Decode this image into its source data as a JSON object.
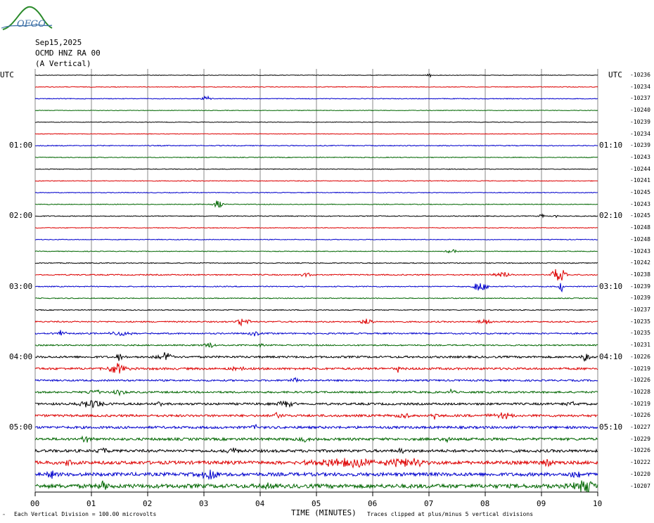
{
  "logo": {
    "text": "OFGO",
    "color": "#2a8a2a",
    "text_color": "#3a6ea5"
  },
  "header": {
    "date": "Sep15,2025",
    "station": "OCMD HNZ RA 00",
    "channel": "(A Vertical)"
  },
  "utc_left": "UTC",
  "utc_right": "UTC",
  "right_top_label": "-10236",
  "x_axis": {
    "label": "TIME (MINUTES)",
    "ticks": [
      "00",
      "01",
      "02",
      "03",
      "04",
      "05",
      "06",
      "07",
      "08",
      "09",
      "10"
    ]
  },
  "footer": {
    "left": "Each Vertical Division =  100.00 microvolts",
    "right": "Traces clipped at plus/minus 5 vertical divisions"
  },
  "chart_data": {
    "type": "line",
    "title": "",
    "xlabel": "TIME (MINUTES)",
    "ylabel": "",
    "xlim": [
      0,
      10
    ],
    "grid": true,
    "colors": [
      "#000000",
      "#dd0000",
      "#0000cc",
      "#006600"
    ],
    "hour_labels_left": [
      {
        "row": 0,
        "text": "UTC"
      },
      {
        "row": 6,
        "text": "01:00"
      },
      {
        "row": 12,
        "text": "02:00"
      },
      {
        "row": 18,
        "text": "03:00"
      },
      {
        "row": 24,
        "text": "04:00"
      },
      {
        "row": 30,
        "text": "05:00"
      }
    ],
    "hour_labels_right": [
      {
        "row": 6,
        "text": "01:10"
      },
      {
        "row": 12,
        "text": "02:10"
      },
      {
        "row": 18,
        "text": "03:10"
      },
      {
        "row": 24,
        "text": "04:10"
      },
      {
        "row": 30,
        "text": "05:10"
      }
    ],
    "row_values": [
      "-10236",
      "-10234",
      "-10237",
      "-10240",
      "-10239",
      "-10234",
      "-10239",
      "-10243",
      "-10244",
      "-10241",
      "-10245",
      "-10243",
      "-10245",
      "-10248",
      "-10248",
      "-10243",
      "-10242",
      "-10238",
      "-10239",
      "-10239",
      "-10237",
      "-10235",
      "-10235",
      "-10231",
      "-10226",
      "-10219",
      "-10226",
      "-10228",
      "-10219",
      "-10226",
      "-10227",
      "-10229",
      "-10226",
      "-10222",
      "-10220",
      "-10207"
    ],
    "noise": [
      0.4,
      0.5,
      0.5,
      0.4,
      0.4,
      0.4,
      0.6,
      0.5,
      0.5,
      0.5,
      0.5,
      0.5,
      0.6,
      0.5,
      0.5,
      0.5,
      0.6,
      0.8,
      0.7,
      0.6,
      0.6,
      0.9,
      1.0,
      0.9,
      1.4,
      1.5,
      1.2,
      1.3,
      1.5,
      1.6,
      1.7,
      1.8,
      1.9,
      2.3,
      2.4,
      2.8
    ],
    "events": [
      {
        "row": 0,
        "t": 7.0,
        "amp": 4,
        "w": 0.04
      },
      {
        "row": 2,
        "t": 3.05,
        "amp": 4,
        "w": 0.08
      },
      {
        "row": 11,
        "t": 3.25,
        "amp": 6,
        "w": 0.08
      },
      {
        "row": 12,
        "t": 9.0,
        "amp": 4,
        "w": 0.05
      },
      {
        "row": 12,
        "t": 9.25,
        "amp": 3,
        "w": 0.05
      },
      {
        "row": 15,
        "t": 7.4,
        "amp": 3,
        "w": 0.1
      },
      {
        "row": 17,
        "t": 8.3,
        "amp": 4,
        "w": 0.15
      },
      {
        "row": 17,
        "t": 9.3,
        "amp": 12,
        "w": 0.12
      },
      {
        "row": 17,
        "t": 4.8,
        "amp": 3,
        "w": 0.12
      },
      {
        "row": 18,
        "t": 7.9,
        "amp": 7,
        "w": 0.12
      },
      {
        "row": 18,
        "t": 9.35,
        "amp": 9,
        "w": 0.03
      },
      {
        "row": 21,
        "t": 3.7,
        "amp": 6,
        "w": 0.1
      },
      {
        "row": 21,
        "t": 5.9,
        "amp": 4,
        "w": 0.12
      },
      {
        "row": 21,
        "t": 8.0,
        "amp": 4,
        "w": 0.12
      },
      {
        "row": 22,
        "t": 0.45,
        "amp": 4,
        "w": 0.1
      },
      {
        "row": 22,
        "t": 1.5,
        "amp": 3,
        "w": 0.2
      },
      {
        "row": 22,
        "t": 3.9,
        "amp": 3,
        "w": 0.1
      },
      {
        "row": 23,
        "t": 3.1,
        "amp": 4,
        "w": 0.1
      },
      {
        "row": 23,
        "t": 4.0,
        "amp": 3,
        "w": 0.05
      },
      {
        "row": 24,
        "t": 1.5,
        "amp": 6,
        "w": 0.06
      },
      {
        "row": 24,
        "t": 2.3,
        "amp": 6,
        "w": 0.15
      },
      {
        "row": 24,
        "t": 9.8,
        "amp": 6,
        "w": 0.08
      },
      {
        "row": 25,
        "t": 1.45,
        "amp": 8,
        "w": 0.15
      },
      {
        "row": 25,
        "t": 3.6,
        "amp": 3,
        "w": 0.1
      },
      {
        "row": 25,
        "t": 6.45,
        "amp": 5,
        "w": 0.03
      },
      {
        "row": 26,
        "t": 4.6,
        "amp": 6,
        "w": 0.05
      },
      {
        "row": 27,
        "t": 1.05,
        "amp": 5,
        "w": 0.1
      },
      {
        "row": 27,
        "t": 1.5,
        "amp": 4,
        "w": 0.1
      },
      {
        "row": 27,
        "t": 7.4,
        "amp": 5,
        "w": 0.05
      },
      {
        "row": 28,
        "t": 1.0,
        "amp": 6,
        "w": 0.2
      },
      {
        "row": 28,
        "t": 2.2,
        "amp": 6,
        "w": 0.04
      },
      {
        "row": 28,
        "t": 4.45,
        "amp": 4,
        "w": 0.15
      },
      {
        "row": 28,
        "t": 9.5,
        "amp": 3,
        "w": 0.1
      },
      {
        "row": 29,
        "t": 4.3,
        "amp": 4,
        "w": 0.15
      },
      {
        "row": 29,
        "t": 6.5,
        "amp": 4,
        "w": 0.15
      },
      {
        "row": 29,
        "t": 7.1,
        "amp": 5,
        "w": 0.05
      },
      {
        "row": 29,
        "t": 8.3,
        "amp": 4,
        "w": 0.2
      },
      {
        "row": 30,
        "t": 3.9,
        "amp": 4,
        "w": 0.05
      },
      {
        "row": 31,
        "t": 0.9,
        "amp": 4,
        "w": 0.1
      },
      {
        "row": 31,
        "t": 4.8,
        "amp": 4,
        "w": 0.08
      },
      {
        "row": 31,
        "t": 7.3,
        "amp": 4,
        "w": 0.08
      },
      {
        "row": 32,
        "t": 1.2,
        "amp": 5,
        "w": 0.1
      },
      {
        "row": 32,
        "t": 3.5,
        "amp": 5,
        "w": 0.1
      },
      {
        "row": 32,
        "t": 6.5,
        "amp": 5,
        "w": 0.05
      },
      {
        "row": 33,
        "t": 0.6,
        "amp": 4,
        "w": 0.1
      },
      {
        "row": 33,
        "t": 5.5,
        "amp": 5,
        "w": 0.7
      },
      {
        "row": 33,
        "t": 6.6,
        "amp": 6,
        "w": 0.3
      },
      {
        "row": 33,
        "t": 9.1,
        "amp": 5,
        "w": 0.1
      },
      {
        "row": 34,
        "t": 3.1,
        "amp": 10,
        "w": 0.15
      },
      {
        "row": 34,
        "t": 0.3,
        "amp": 5,
        "w": 0.1
      },
      {
        "row": 34,
        "t": 9.6,
        "amp": 6,
        "w": 0.1
      },
      {
        "row": 35,
        "t": 1.2,
        "amp": 6,
        "w": 0.1
      },
      {
        "row": 35,
        "t": 9.75,
        "amp": 12,
        "w": 0.2
      },
      {
        "row": 35,
        "t": 4.2,
        "amp": 4,
        "w": 0.1
      }
    ]
  }
}
